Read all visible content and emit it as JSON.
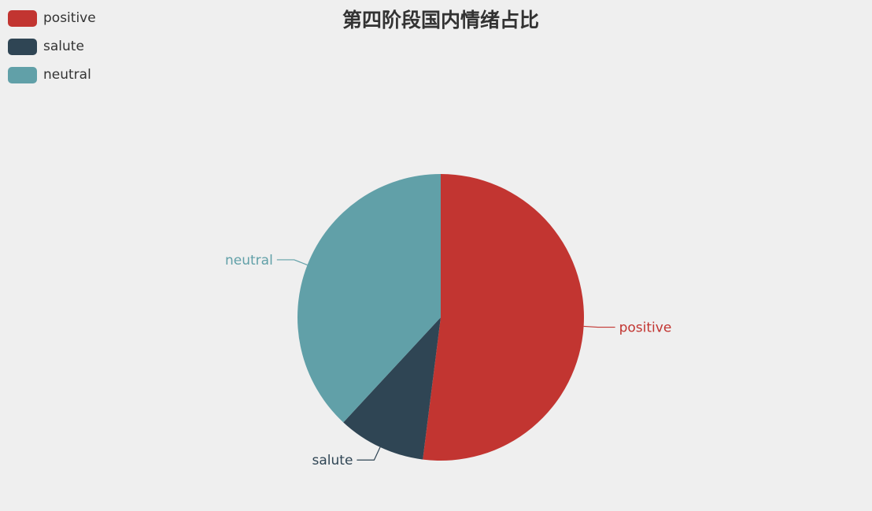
{
  "chart_data": {
    "type": "pie",
    "title": "第四阶段国内情绪占比",
    "legend_position": "top-left",
    "slices": [
      {
        "label": "positive",
        "value": 52,
        "color": "#c23531"
      },
      {
        "label": "salute",
        "value": 9.9,
        "color": "#2f4554"
      },
      {
        "label": "neutral",
        "value": 38.1,
        "color": "#61a0a8"
      }
    ],
    "title_color": "#333333"
  }
}
